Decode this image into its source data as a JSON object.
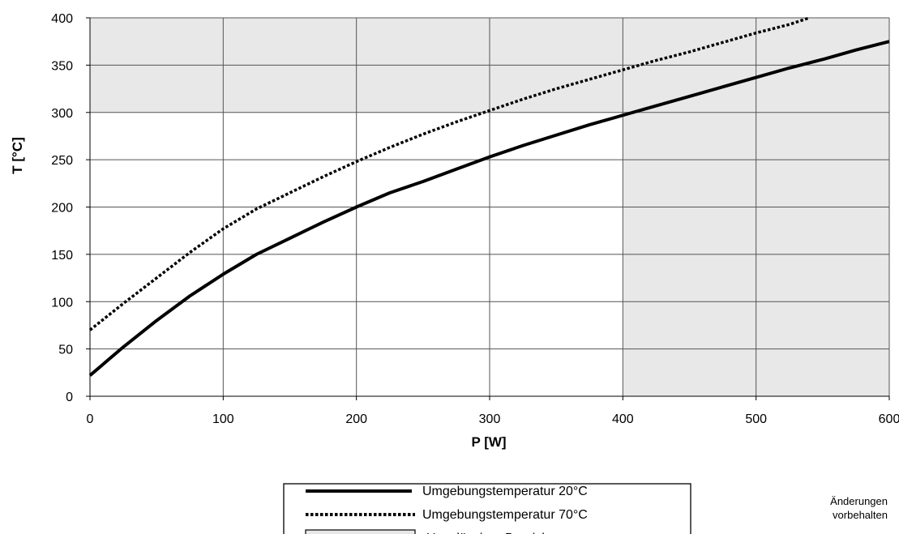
{
  "chart_data": {
    "type": "line",
    "xlabel": "P [W]",
    "ylabel": "T [°C]",
    "xlim": [
      0,
      600
    ],
    "ylim": [
      0,
      400
    ],
    "x_ticks": [
      0,
      100,
      200,
      300,
      400,
      500,
      600
    ],
    "y_ticks": [
      0,
      50,
      100,
      150,
      200,
      250,
      300,
      350,
      400
    ],
    "grid": true,
    "shaded_regions": [
      {
        "name": "Unzulässiger Bereich",
        "rule": "y >= 300 or x >= 400",
        "color": "#e8e8e8"
      }
    ],
    "series": [
      {
        "name": "Umgebungstemperatur 20°C",
        "style": "solid",
        "color": "#000000",
        "x": [
          0,
          25,
          50,
          75,
          100,
          125,
          150,
          175,
          200,
          225,
          250,
          275,
          300,
          325,
          350,
          375,
          400,
          425,
          450,
          475,
          500,
          525,
          550,
          575,
          600
        ],
        "y": [
          22,
          52,
          80,
          106,
          129,
          150,
          167,
          184,
          200,
          215,
          227,
          240,
          253,
          265,
          276,
          287,
          297,
          307,
          317,
          327,
          337,
          347,
          356,
          366,
          375
        ]
      },
      {
        "name": "Umgebungstemperatur 70°C",
        "style": "dotted",
        "color": "#000000",
        "x": [
          0,
          25,
          50,
          75,
          100,
          125,
          150,
          175,
          200,
          225,
          250,
          275,
          300,
          325,
          350,
          375,
          400,
          425,
          450,
          475,
          500,
          525,
          540
        ],
        "y": [
          70,
          98,
          125,
          152,
          177,
          198,
          215,
          232,
          248,
          263,
          277,
          290,
          302,
          314,
          325,
          335,
          345,
          355,
          364,
          374,
          384,
          393,
          400
        ]
      }
    ],
    "legend": {
      "placement": "bottom-center",
      "entries": [
        {
          "label": "Umgebungstemperatur 20°C",
          "style": "solid"
        },
        {
          "label": "Umgebungstemperatur 70°C",
          "style": "dotted"
        },
        {
          "label": "Unzulässiger Bereich",
          "style": "box"
        }
      ]
    }
  },
  "note": {
    "line1": "Änderungen",
    "line2": "vorbehalten"
  }
}
